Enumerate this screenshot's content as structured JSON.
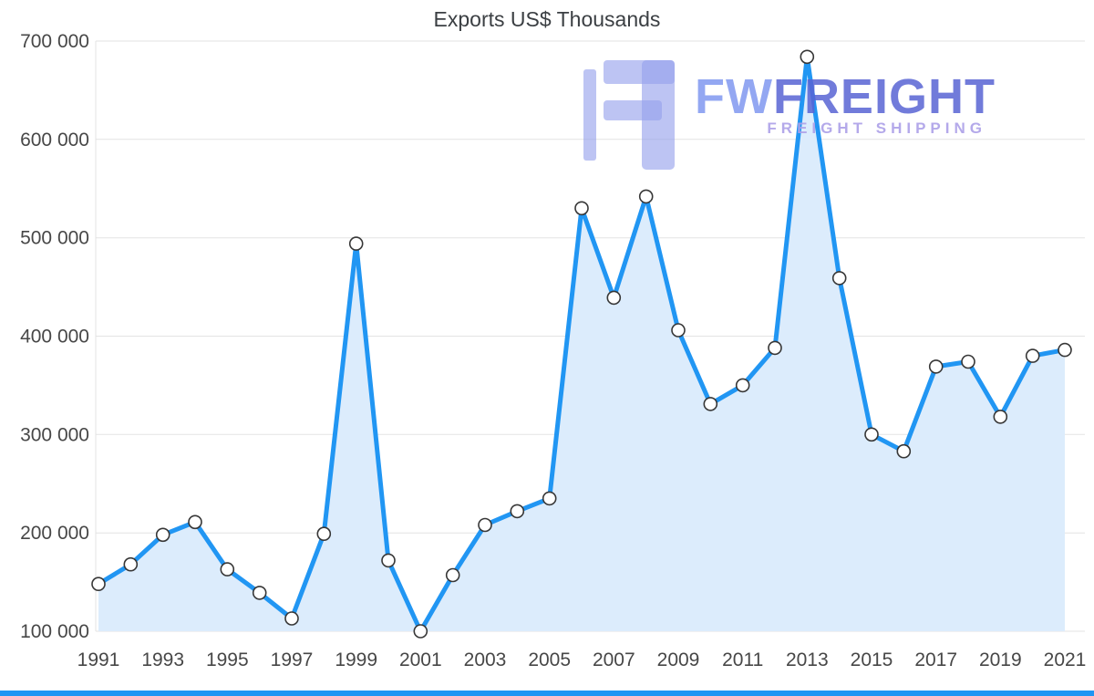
{
  "chart": {
    "title": "Exports US$ Thousands"
  },
  "watermark": {
    "brand_fw": "FW",
    "brand_freight": "FREIGHT",
    "subtitle": "FREIGHT SHIPPING"
  },
  "chart_data": {
    "type": "area",
    "title": "Exports US$ Thousands",
    "x": [
      1991,
      1992,
      1993,
      1994,
      1995,
      1996,
      1997,
      1998,
      1999,
      2000,
      2001,
      2002,
      2003,
      2004,
      2005,
      2006,
      2007,
      2008,
      2009,
      2010,
      2011,
      2012,
      2013,
      2014,
      2015,
      2016,
      2017,
      2018,
      2019,
      2020,
      2021
    ],
    "values": [
      148000,
      168000,
      198000,
      211000,
      163000,
      139000,
      113000,
      199000,
      494000,
      172000,
      100000,
      157000,
      208000,
      222000,
      235000,
      530000,
      439000,
      542000,
      406000,
      331000,
      350000,
      388000,
      684000,
      459000,
      300000,
      283000,
      369000,
      374000,
      318000,
      380000,
      386000
    ],
    "x_tick_values": [
      1991,
      1993,
      1995,
      1997,
      1999,
      2001,
      2003,
      2005,
      2007,
      2009,
      2011,
      2013,
      2015,
      2017,
      2019,
      2021
    ],
    "x_tick_labels": [
      "1991",
      "1993",
      "1995",
      "1997",
      "1999",
      "2001",
      "2003",
      "2005",
      "2007",
      "2009",
      "2011",
      "2013",
      "2015",
      "2017",
      "2019",
      "2021"
    ],
    "y_ticks": [
      100000,
      200000,
      300000,
      400000,
      500000,
      600000,
      700000
    ],
    "y_tick_labels": [
      "100 000",
      "200 000",
      "300 000",
      "400 000",
      "500 000",
      "600 000",
      "700 000"
    ],
    "ylim": [
      100000,
      700000
    ],
    "xlabel": "",
    "ylabel": "",
    "grid": true,
    "legend": false,
    "colors": {
      "line": "#2196f3",
      "fill": "#dcecfc",
      "grid": "#e3e3e3",
      "marker_fill": "#ffffff",
      "marker_stroke": "#373737",
      "accent_bar": "#2095f3"
    }
  }
}
